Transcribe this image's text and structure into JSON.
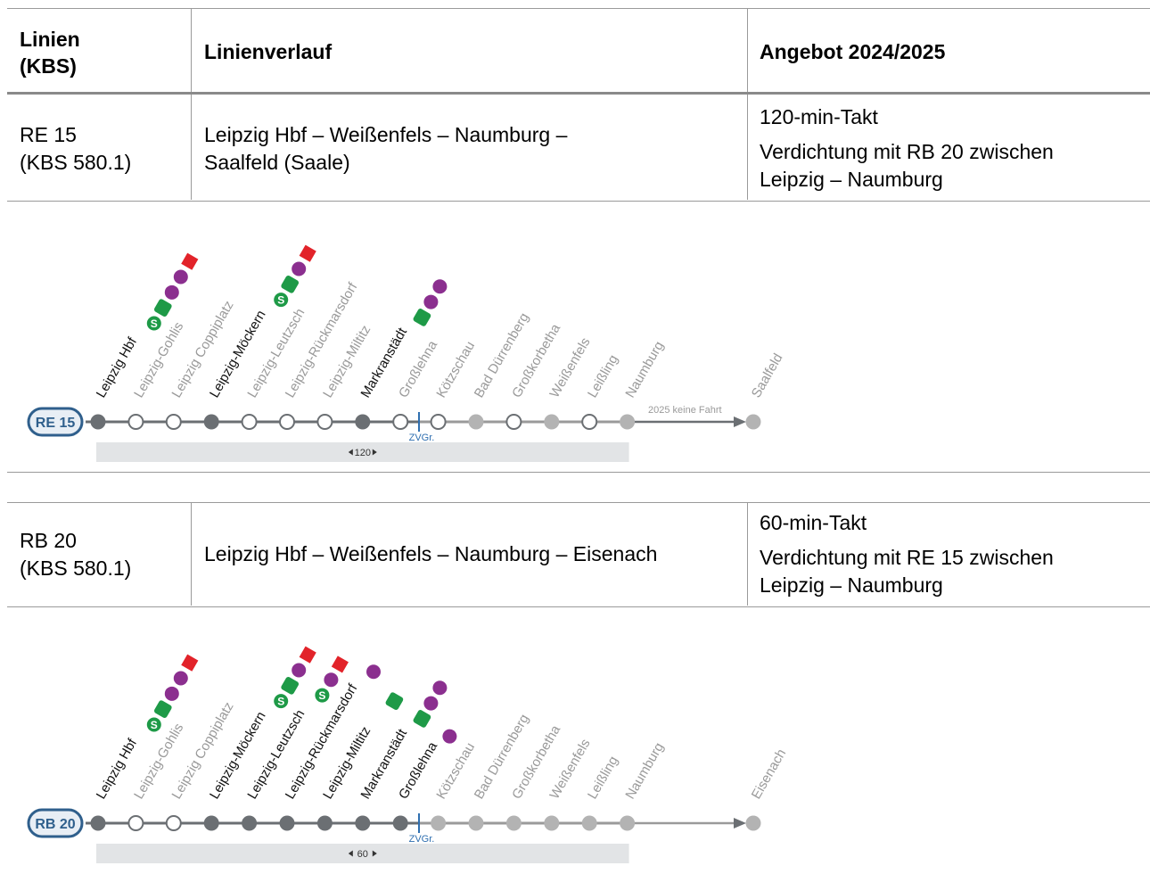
{
  "table": {
    "headers": [
      "Linien (KBS)",
      "Linienverlauf",
      "Angebot 2024/2025"
    ],
    "header_linien_line1": "Linien",
    "header_linien_line2": "(KBS)",
    "rows": [
      {
        "line": "RE 15",
        "kbs": "(KBS 580.1)",
        "route_line1": "Leipzig Hbf – Weißenfels – Naumburg –",
        "route_line2": "Saalfeld (Saale)",
        "offer_line1": "120-min-Takt",
        "offer_line2": "Verdichtung mit RB 20 zwischen",
        "offer_line3": "Leipzig – Naumburg"
      },
      {
        "line": "RB 20",
        "kbs": "(KBS 580.1)",
        "route_line1": "Leipzig Hbf – Weißenfels – Naumburg – Eisenach",
        "route_line2": "",
        "offer_line1": "60-min-Takt",
        "offer_line2": "Verdichtung mit RE 15 zwischen",
        "offer_line3": "Leipzig – Naumburg"
      }
    ]
  },
  "diagrams": [
    {
      "badge": "RE 15",
      "interval_label": "120",
      "note": "2025 keine Fahrt",
      "zone_label": "ZVGr.",
      "stations": [
        {
          "name": "Leipzig Hbf",
          "stop": "filled",
          "label": "dark",
          "icons": [
            "S",
            "Zug",
            "BUS",
            "BUS",
            "Tram"
          ]
        },
        {
          "name": "Leipzig-Gohlis",
          "stop": "open",
          "label": "light",
          "icons": []
        },
        {
          "name": "Leipzig Coppiplatz",
          "stop": "open",
          "label": "light",
          "icons": []
        },
        {
          "name": "Leipzig-Möckern",
          "stop": "filled",
          "label": "dark",
          "icons": [
            "S",
            "Zug",
            "BUS",
            "Tram"
          ]
        },
        {
          "name": "Leipzig-Leutzsch",
          "stop": "open",
          "label": "light",
          "icons": []
        },
        {
          "name": "Leipzig-Rückmarsdorf",
          "stop": "open",
          "label": "light",
          "icons": []
        },
        {
          "name": "Leipzig-Miltitz",
          "stop": "open",
          "label": "light",
          "icons": []
        },
        {
          "name": "Markranstädt",
          "stop": "filled",
          "label": "dark",
          "icons": [
            "Zug",
            "BUS",
            "BUS"
          ]
        },
        {
          "name": "Großlehna",
          "stop": "open",
          "label": "light",
          "icons": []
        },
        {
          "name": "Kötzschau",
          "stop": "open",
          "label": "light",
          "icons": []
        },
        {
          "name": "Bad Dürrenberg",
          "stop": "grey",
          "label": "light",
          "icons": []
        },
        {
          "name": "Großkorbetha",
          "stop": "open",
          "label": "light",
          "icons": []
        },
        {
          "name": "Weißenfels",
          "stop": "grey",
          "label": "light",
          "icons": []
        },
        {
          "name": "Leißling",
          "stop": "open",
          "label": "light",
          "icons": []
        },
        {
          "name": "Naumburg",
          "stop": "grey",
          "label": "light",
          "icons": []
        },
        {
          "name": "Saalfeld",
          "stop": "grey",
          "label": "light",
          "icons": []
        }
      ]
    },
    {
      "badge": "RB 20",
      "interval_label": "60",
      "note": "",
      "zone_label": "ZVGr.",
      "stations": [
        {
          "name": "Leipzig Hbf",
          "stop": "filled",
          "label": "dark",
          "icons": [
            "S",
            "Zug",
            "BUS",
            "BUS",
            "Tram"
          ]
        },
        {
          "name": "Leipzig-Gohlis",
          "stop": "open",
          "label": "light",
          "icons": []
        },
        {
          "name": "Leipzig Coppiplatz",
          "stop": "open",
          "label": "light",
          "icons": []
        },
        {
          "name": "Leipzig-Möckern",
          "stop": "filled",
          "label": "dark",
          "icons": [
            "S",
            "Zug",
            "BUS",
            "Tram"
          ]
        },
        {
          "name": "Leipzig-Leutzsch",
          "stop": "filled",
          "label": "dark",
          "icons": [
            "S",
            "BUS",
            "Tram"
          ]
        },
        {
          "name": "Leipzig-Rückmarsdorf",
          "stop": "filled",
          "label": "dark",
          "icons": [
            "BUS"
          ]
        },
        {
          "name": "Leipzig-Miltitz",
          "stop": "filled",
          "label": "dark",
          "icons": [
            "Zug"
          ]
        },
        {
          "name": "Markranstädt",
          "stop": "filled",
          "label": "dark",
          "icons": [
            "Zug",
            "BUS",
            "BUS"
          ]
        },
        {
          "name": "Großlehna",
          "stop": "filled",
          "label": "dark",
          "icons": [
            "BUS"
          ]
        },
        {
          "name": "Kötzschau",
          "stop": "grey",
          "label": "light",
          "icons": []
        },
        {
          "name": "Bad Dürrenberg",
          "stop": "grey",
          "label": "light",
          "icons": []
        },
        {
          "name": "Großkorbetha",
          "stop": "grey",
          "label": "light",
          "icons": []
        },
        {
          "name": "Weißenfels",
          "stop": "grey",
          "label": "light",
          "icons": []
        },
        {
          "name": "Leißling",
          "stop": "grey",
          "label": "light",
          "icons": []
        },
        {
          "name": "Naumburg",
          "stop": "grey",
          "label": "light",
          "icons": []
        },
        {
          "name": "Eisenach",
          "stop": "grey",
          "label": "light",
          "icons": []
        }
      ]
    }
  ],
  "colors": {
    "badge_blue": "#2f5f8c",
    "badge_fill": "#e8eef5",
    "line_dark": "#6b6f73",
    "line_light": "#9a9a9a",
    "stop_grey": "#b3b3b3",
    "label_light": "#9a9a9a",
    "zone_blue": "#2f6fb0",
    "s_green": "#1e9a47",
    "bus_purple": "#8b2f8f",
    "tram_red": "#e2232a",
    "bar_grey": "#e2e4e6"
  }
}
